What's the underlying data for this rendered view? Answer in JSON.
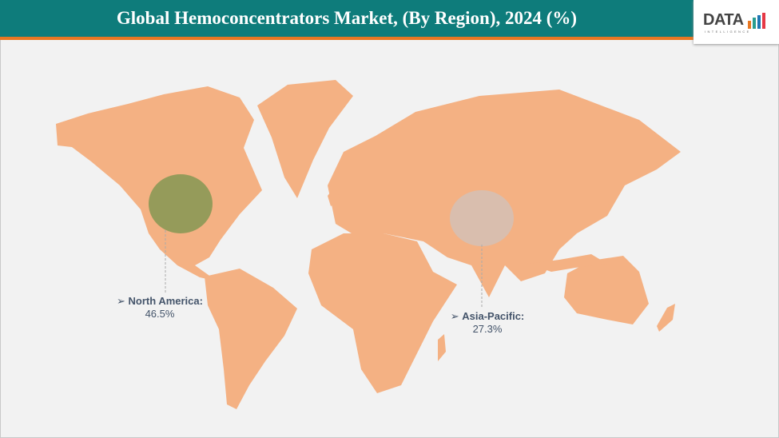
{
  "header": {
    "title": "Global Hemoconcentrators Market, (By Region), 2024 (%)"
  },
  "logo": {
    "text": "DATA",
    "subtext": "INTELLIGENCE",
    "bar_colors": [
      "#e87722",
      "#2a9d8f",
      "#1f77b4",
      "#e63946"
    ]
  },
  "colors": {
    "land": "#f4b183",
    "north_america_bubble": "#8f9a57",
    "asia_pacific_bubble": "#d7bfb0",
    "header": "#0e7c7b",
    "accent": "#e87722"
  },
  "chart_data": {
    "type": "map-bubble",
    "title": "Global Hemoconcentrators Market, (By Region), 2024 (%)",
    "regions": [
      {
        "name": "North America",
        "label": "North America:",
        "value": 46.5,
        "display": "46.5%"
      },
      {
        "name": "Asia-Pacific",
        "label": "Asia-Pacific:",
        "value": 27.3,
        "display": "27.3%"
      }
    ]
  }
}
